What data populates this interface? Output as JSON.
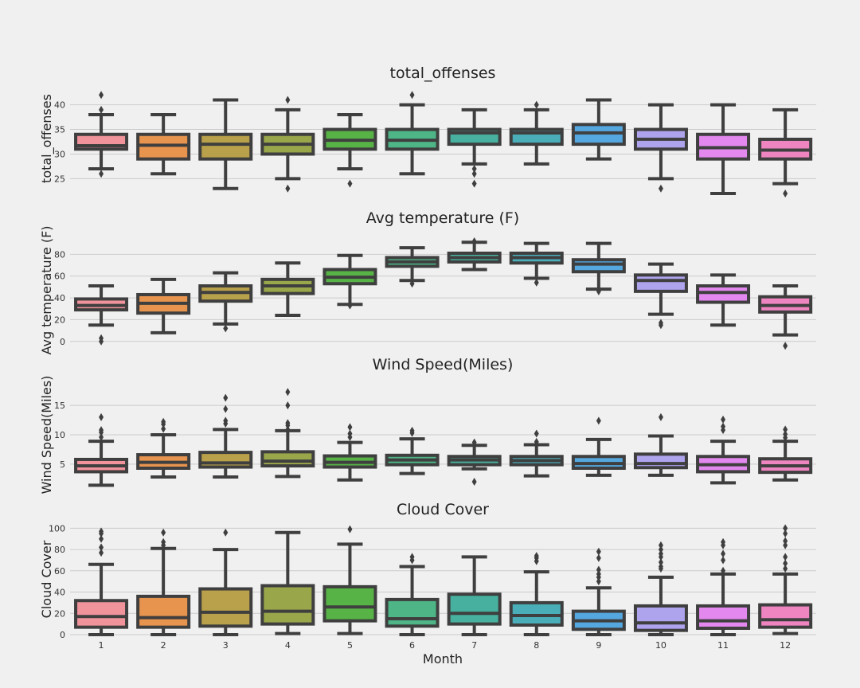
{
  "chart_data": {
    "type": "box",
    "xlabel": "Month",
    "categories": [
      "1",
      "2",
      "3",
      "4",
      "5",
      "6",
      "7",
      "8",
      "9",
      "10",
      "11",
      "12"
    ],
    "box_colors": [
      "#f0939b",
      "#e7944f",
      "#b9a04a",
      "#9aa64a",
      "#58b347",
      "#4db586",
      "#47b09e",
      "#4aaeb9",
      "#55a7df",
      "#aea4ee",
      "#e288ee",
      "#ef85c0"
    ],
    "panels": [
      {
        "title": "total_offenses",
        "ylabel": "total_offenses",
        "ylim": [
          22.8,
          43.5
        ],
        "yticks": [
          25,
          30,
          35,
          40
        ],
        "boxes": [
          {
            "q1": 31,
            "median": 31.7,
            "q3": 34,
            "whislo": 27,
            "whishi": 38,
            "fliers": [
              42,
              39,
              26
            ]
          },
          {
            "q1": 29,
            "median": 31.8,
            "q3": 34,
            "whislo": 26,
            "whishi": 38,
            "fliers": []
          },
          {
            "q1": 29,
            "median": 32,
            "q3": 34,
            "whislo": 23,
            "whishi": 41,
            "fliers": []
          },
          {
            "q1": 30,
            "median": 32,
            "q3": 34,
            "whislo": 25,
            "whishi": 39,
            "fliers": [
              41,
              23
            ]
          },
          {
            "q1": 31,
            "median": 32.8,
            "q3": 35,
            "whislo": 27,
            "whishi": 38,
            "fliers": [
              24
            ]
          },
          {
            "q1": 31,
            "median": 32.8,
            "q3": 35,
            "whislo": 26,
            "whishi": 40,
            "fliers": [
              42
            ]
          },
          {
            "q1": 32,
            "median": 34.3,
            "q3": 35,
            "whislo": 28,
            "whishi": 39,
            "fliers": [
              27,
              26,
              24
            ]
          },
          {
            "q1": 32,
            "median": 34.3,
            "q3": 35,
            "whislo": 28,
            "whishi": 39,
            "fliers": [
              40
            ]
          },
          {
            "q1": 32,
            "median": 34.3,
            "q3": 36,
            "whislo": 29,
            "whishi": 41,
            "fliers": []
          },
          {
            "q1": 31,
            "median": 33,
            "q3": 35,
            "whislo": 25,
            "whishi": 40,
            "fliers": [
              23
            ]
          },
          {
            "q1": 29,
            "median": 31.3,
            "q3": 34,
            "whislo": 22,
            "whishi": 40,
            "fliers": []
          },
          {
            "q1": 29,
            "median": 30.8,
            "q3": 33,
            "whislo": 24,
            "whishi": 39,
            "fliers": [
              22
            ]
          }
        ]
      },
      {
        "title": "Avg temperature (F)",
        "ylabel": "Avg temperature (F)",
        "ylim": [
          -6,
          100
        ],
        "yticks": [
          0,
          20,
          40,
          60,
          80
        ],
        "boxes": [
          {
            "q1": 29,
            "median": 33,
            "q3": 39,
            "whislo": 15,
            "whishi": 51,
            "fliers": [
              3,
              0
            ]
          },
          {
            "q1": 26,
            "median": 35,
            "q3": 43,
            "whislo": 8,
            "whishi": 57,
            "fliers": []
          },
          {
            "q1": 37,
            "median": 45,
            "q3": 51,
            "whislo": 16,
            "whishi": 63,
            "fliers": [
              12
            ]
          },
          {
            "q1": 44,
            "median": 51,
            "q3": 57,
            "whislo": 24,
            "whishi": 72,
            "fliers": []
          },
          {
            "q1": 53,
            "median": 59,
            "q3": 66,
            "whislo": 34,
            "whishi": 79,
            "fliers": [
              33
            ]
          },
          {
            "q1": 69,
            "median": 73,
            "q3": 77,
            "whislo": 56,
            "whishi": 86,
            "fliers": [
              53
            ]
          },
          {
            "q1": 73,
            "median": 77,
            "q3": 81,
            "whislo": 66,
            "whishi": 91,
            "fliers": [
              92
            ]
          },
          {
            "q1": 72,
            "median": 77,
            "q3": 81,
            "whislo": 58,
            "whishi": 90,
            "fliers": [
              54
            ]
          },
          {
            "q1": 64,
            "median": 71,
            "q3": 75,
            "whislo": 48,
            "whishi": 90,
            "fliers": [
              46
            ]
          },
          {
            "q1": 46,
            "median": 56,
            "q3": 61,
            "whislo": 25,
            "whishi": 71,
            "fliers": [
              17,
              15
            ]
          },
          {
            "q1": 36,
            "median": 45,
            "q3": 51,
            "whislo": 15,
            "whishi": 61,
            "fliers": []
          },
          {
            "q1": 27,
            "median": 33,
            "q3": 41,
            "whislo": 6,
            "whishi": 51,
            "fliers": [
              -4
            ]
          }
        ]
      },
      {
        "title": "Wind Speed(Miles)",
        "ylabel": "Wind Speed(Miles)",
        "ylim": [
          0.5,
          19.5
        ],
        "yticks": [
          5,
          10,
          15
        ],
        "boxes": [
          {
            "q1": 3.7,
            "median": 4.7,
            "q3": 5.8,
            "whislo": 1.4,
            "whishi": 8.9,
            "fliers": [
              13,
              10.8,
              10.4,
              9.6
            ]
          },
          {
            "q1": 4.3,
            "median": 5.3,
            "q3": 6.6,
            "whislo": 2.8,
            "whishi": 10,
            "fliers": [
              12.2,
              11.8,
              11
            ]
          },
          {
            "q1": 4.5,
            "median": 5.2,
            "q3": 7,
            "whislo": 2.8,
            "whishi": 10.9,
            "fliers": [
              16.3,
              14.4,
              12.4,
              11.9
            ]
          },
          {
            "q1": 4.7,
            "median": 5.5,
            "q3": 7.1,
            "whislo": 2.9,
            "whishi": 10.7,
            "fliers": [
              17.3,
              15,
              12,
              11.6,
              10.9
            ]
          },
          {
            "q1": 4.5,
            "median": 5.3,
            "q3": 6.4,
            "whislo": 2.3,
            "whishi": 8.7,
            "fliers": [
              11.3,
              10.2,
              9.6
            ]
          },
          {
            "q1": 4.9,
            "median": 5.7,
            "q3": 6.5,
            "whislo": 3.4,
            "whishi": 9.3,
            "fliers": [
              10.7,
              10.3
            ]
          },
          {
            "q1": 4.9,
            "median": 5.7,
            "q3": 6.3,
            "whislo": 4.2,
            "whishi": 8.2,
            "fliers": [
              8.7,
              2
            ]
          },
          {
            "q1": 4.9,
            "median": 5.6,
            "q3": 6.3,
            "whislo": 3,
            "whishi": 8.3,
            "fliers": [
              10.2,
              8.8
            ]
          },
          {
            "q1": 4.3,
            "median": 5.1,
            "q3": 6.3,
            "whislo": 3.1,
            "whishi": 9.2,
            "fliers": [
              12.4
            ]
          },
          {
            "q1": 4.4,
            "median": 5.1,
            "q3": 6.7,
            "whislo": 3.1,
            "whishi": 9.8,
            "fliers": [
              13
            ]
          },
          {
            "q1": 3.7,
            "median": 4.9,
            "q3": 6.3,
            "whislo": 1.8,
            "whishi": 8.9,
            "fliers": [
              12.6,
              11.4,
              10.8
            ]
          },
          {
            "q1": 3.6,
            "median": 4.7,
            "q3": 5.9,
            "whislo": 2.3,
            "whishi": 8.9,
            "fliers": [
              10.9,
              10.1,
              9.5
            ]
          }
        ]
      },
      {
        "title": "Cloud Cover",
        "ylabel": "Cloud Cover",
        "ylim": [
          0,
          104
        ],
        "yticks": [
          0,
          20,
          40,
          60,
          80,
          100
        ],
        "boxes": [
          {
            "q1": 7,
            "median": 17,
            "q3": 32,
            "whislo": 0,
            "whishi": 66,
            "fliers": [
              97,
              95,
              90,
              82,
              77
            ]
          },
          {
            "q1": 7,
            "median": 16,
            "q3": 36,
            "whislo": 0,
            "whishi": 81,
            "fliers": [
              96,
              87,
              84
            ]
          },
          {
            "q1": 8,
            "median": 21,
            "q3": 43,
            "whislo": 0,
            "whishi": 80,
            "fliers": [
              96
            ]
          },
          {
            "q1": 10,
            "median": 22,
            "q3": 46,
            "whislo": 1,
            "whishi": 96,
            "fliers": []
          },
          {
            "q1": 13,
            "median": 26,
            "q3": 45,
            "whislo": 1,
            "whishi": 85,
            "fliers": [
              99
            ]
          },
          {
            "q1": 8,
            "median": 15,
            "q3": 33,
            "whislo": 0,
            "whishi": 64,
            "fliers": [
              73,
              70
            ]
          },
          {
            "q1": 10,
            "median": 20,
            "q3": 38,
            "whislo": 0,
            "whishi": 73,
            "fliers": []
          },
          {
            "q1": 9,
            "median": 18,
            "q3": 30,
            "whislo": 0,
            "whishi": 59,
            "fliers": [
              74,
              72,
              69
            ]
          },
          {
            "q1": 5,
            "median": 13,
            "q3": 22,
            "whislo": 0,
            "whishi": 44,
            "fliers": [
              78,
              72,
              61,
              57,
              54,
              50
            ]
          },
          {
            "q1": 4,
            "median": 11,
            "q3": 27,
            "whislo": 0,
            "whishi": 54,
            "fliers": [
              84,
              80,
              76,
              73,
              68,
              64,
              62
            ]
          },
          {
            "q1": 6,
            "median": 13,
            "q3": 27,
            "whislo": 0,
            "whishi": 57,
            "fliers": [
              87,
              84,
              76,
              70,
              60
            ]
          },
          {
            "q1": 7,
            "median": 14,
            "q3": 28,
            "whislo": 1,
            "whishi": 57,
            "fliers": [
              100,
              95,
              88,
              84,
              73,
              67,
              62
            ]
          }
        ]
      }
    ]
  }
}
